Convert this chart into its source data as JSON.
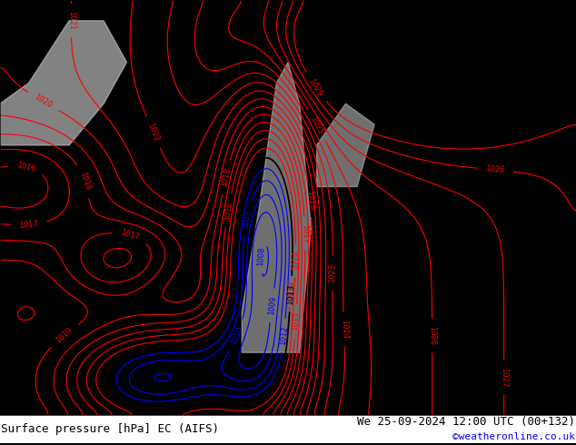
{
  "title_left": "Surface pressure [hPa] EC (AIFS)",
  "title_right": "We 25-09-2024 12:00 UTC (00+132)",
  "copyright": "©weatheronline.co.uk",
  "bg_color": "#aaee77",
  "land_color": "#aaee77",
  "sea_color": "#aaee77",
  "mountain_color": "#cccccc",
  "footer_bg": "#000000",
  "red_line_color": "#ff0000",
  "black_line_color": "#000000",
  "blue_line_color": "#0000ff",
  "text_color_left": "#000000",
  "text_color_right": "#000000",
  "copyright_color": "#0000ff",
  "font_size_footer": 9,
  "font_size_labels": 7
}
